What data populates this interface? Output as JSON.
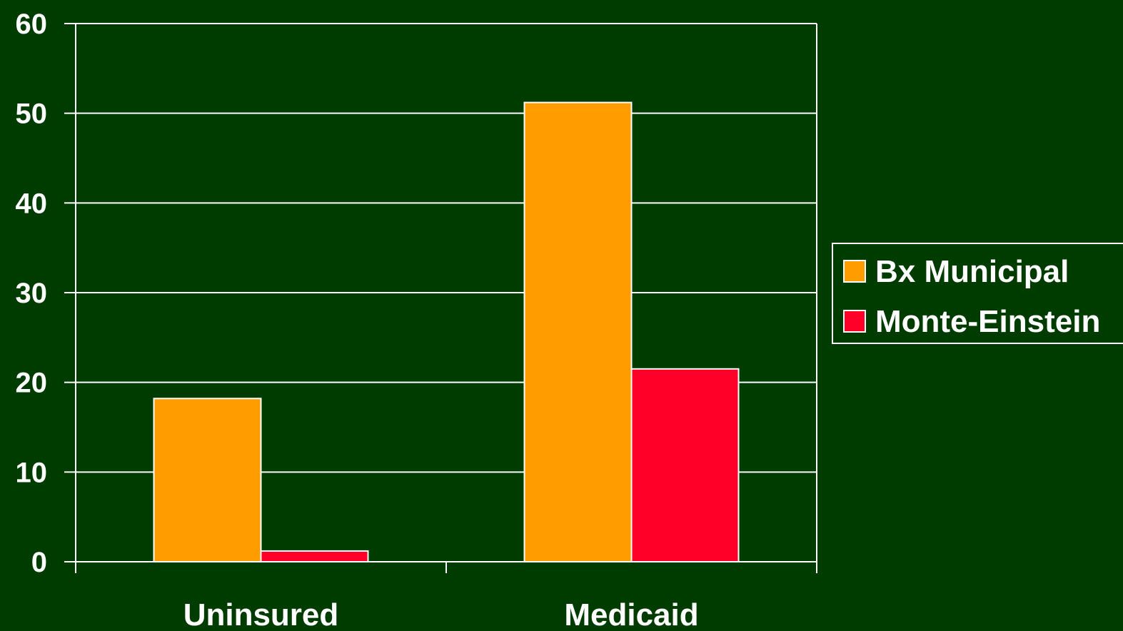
{
  "chart_data": {
    "type": "bar",
    "title": "",
    "xlabel": "",
    "ylabel": "",
    "categories": [
      "Uninsured",
      "Medicaid"
    ],
    "ylim": [
      0,
      60
    ],
    "yticks": [
      "0",
      "10",
      "20",
      "30",
      "40",
      "50",
      "60"
    ],
    "grid": true,
    "legend_position": "right",
    "series": [
      {
        "name": "Bx Municipal",
        "color": "#ff9c00",
        "values": [
          18.2,
          51.2
        ]
      },
      {
        "name": "Monte-Einstein",
        "color": "#ff0029",
        "values": [
          1.2,
          21.5
        ]
      }
    ],
    "colors": {
      "background": "#003c00",
      "axis": "#ffffff",
      "grid": "#ffffff",
      "text": "#ffffff"
    }
  }
}
